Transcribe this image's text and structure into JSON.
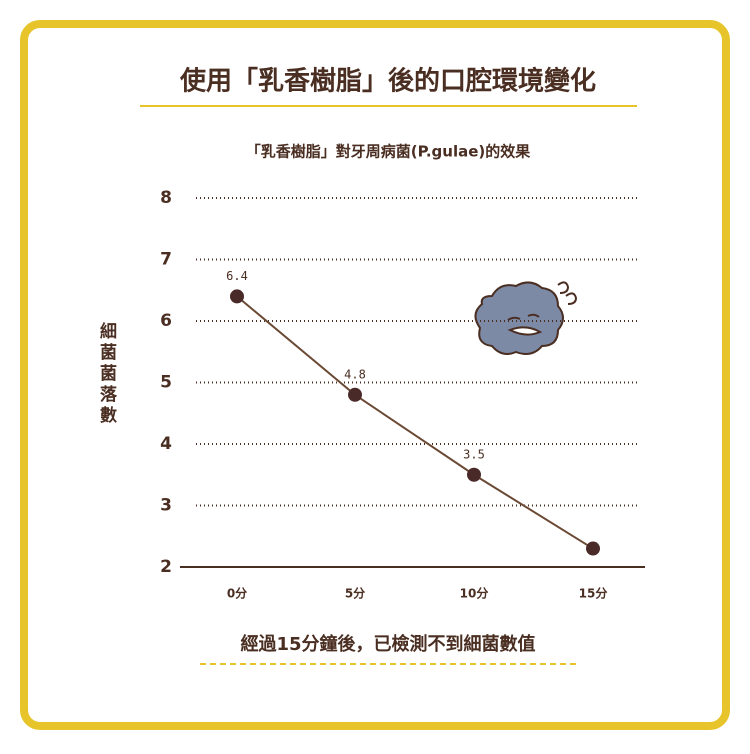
{
  "chart_data": {
    "type": "line",
    "title": "使用「乳香樹脂」後的口腔環境變化",
    "subtitle": "「乳香樹脂」對牙周病菌(P.gulae)的效果",
    "y_label": "細菌菌落數",
    "annotation": "經過15分鐘後，已檢測不到細菌數值",
    "categories": [
      "0分",
      "5分",
      "10分",
      "15分"
    ],
    "series": [
      {
        "color": "#6b4a35",
        "marker_color": "#4a2a28",
        "values": [
          6.4,
          4.8,
          3.5,
          2.3
        ],
        "value_labels": [
          "6.4",
          "4.8",
          "3.5",
          null
        ]
      }
    ],
    "ylim": [
      2,
      8
    ],
    "yticks": [
      2,
      3,
      4,
      5,
      6,
      7,
      8
    ],
    "grid": true
  }
}
